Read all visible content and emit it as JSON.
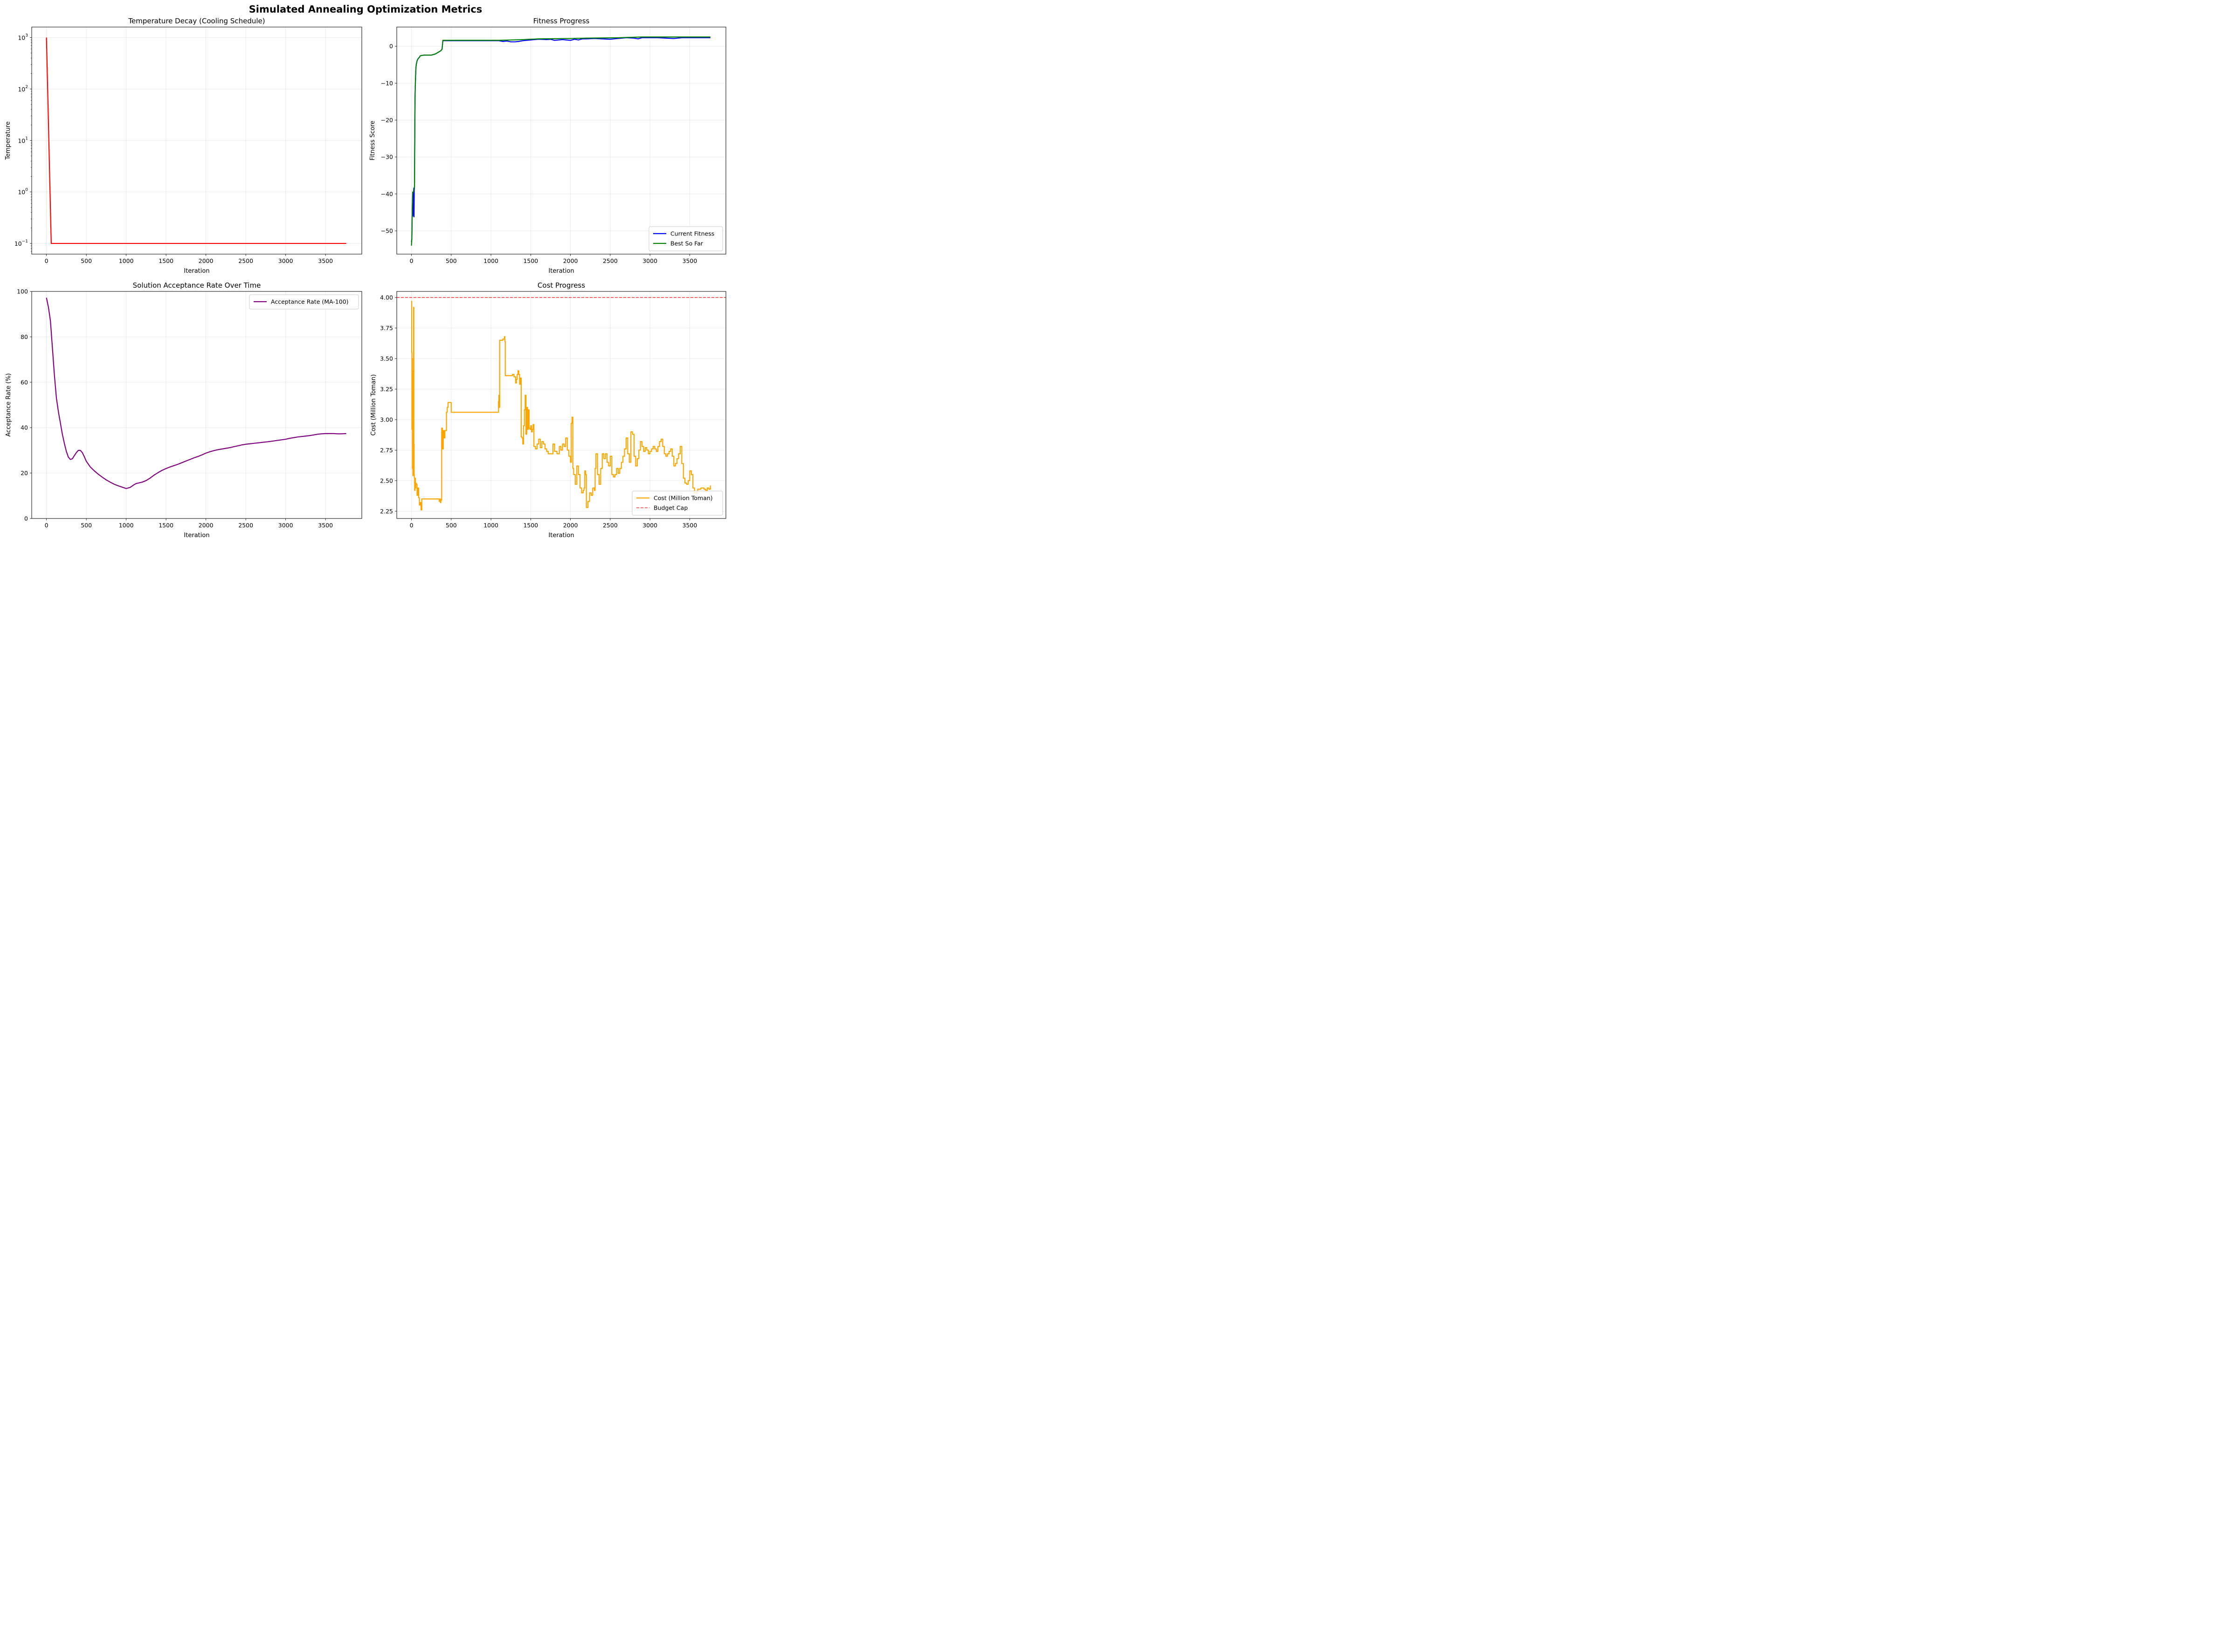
{
  "suptitle": "Simulated Annealing Optimization Metrics",
  "chart_data": [
    {
      "id": "temperature",
      "type": "line",
      "title": "Temperature Decay (Cooling Schedule)",
      "xlabel": "Iteration",
      "ylabel": "Temperature",
      "yscale": "log",
      "xlim": [
        -185,
        3955
      ],
      "ylim": [
        0.062,
        1600
      ],
      "xticks": [
        0,
        500,
        1000,
        1500,
        2000,
        2500,
        3000,
        3500
      ],
      "yticks": [
        0.1,
        1,
        10,
        100,
        1000
      ],
      "yticklabels": [
        {
          "base": "10",
          "exp": "−1"
        },
        {
          "base": "10",
          "exp": "0"
        },
        {
          "base": "10",
          "exp": "1"
        },
        {
          "base": "10",
          "exp": "2"
        },
        {
          "base": "10",
          "exp": "3"
        }
      ],
      "grid": true,
      "legend": null,
      "series": [
        {
          "color": "#ff0000",
          "x": [
            0,
            60,
            3760
          ],
          "y": [
            1000,
            0.1,
            0.1
          ]
        }
      ]
    },
    {
      "id": "fitness",
      "type": "line",
      "title": "Fitness Progress",
      "xlabel": "Iteration",
      "ylabel": "Fitness Score",
      "xlim": [
        -185,
        3955
      ],
      "ylim": [
        -56.3,
        5.2
      ],
      "xticks": [
        0,
        500,
        1000,
        1500,
        2000,
        2500,
        3000,
        3500
      ],
      "yticks": [
        -50,
        -40,
        -30,
        -20,
        -10,
        0
      ],
      "yticklabels": [
        "−50",
        "−40",
        "−30",
        "−20",
        "−10",
        "0"
      ],
      "grid": true,
      "legend": "lower right",
      "series": [
        {
          "name": "Current Fitness",
          "color": "#0000ff",
          "x": [
            0,
            5,
            10,
            15,
            18,
            22,
            25,
            28,
            32,
            35,
            38,
            40,
            43,
            45,
            48,
            52,
            56,
            60,
            65,
            70,
            80,
            90,
            100,
            110,
            130,
            160,
            200,
            250,
            300,
            340,
            370,
            385,
            395,
            400,
            500,
            700,
            900,
            1100,
            1150,
            1200,
            1250,
            1300,
            1350,
            1400,
            1450,
            1500,
            1550,
            1600,
            1700,
            1750,
            1800,
            1900,
            2000,
            2050,
            2100,
            2150,
            2200,
            2300,
            2400,
            2500,
            2550,
            2600,
            2700,
            2800,
            2850,
            2900,
            3000,
            3100,
            3200,
            3300,
            3400,
            3500,
            3600,
            3760
          ],
          "y": [
            -53,
            -52,
            -44,
            -39.5,
            -46,
            -41,
            -45.5,
            -38.5,
            -46.2,
            -39,
            -38.2,
            -30,
            -20,
            -14,
            -11,
            -8,
            -6,
            -5,
            -4.5,
            -4,
            -3.5,
            -3.2,
            -3,
            -2.6,
            -2.5,
            -2.4,
            -2.4,
            -2.4,
            -2.1,
            -1.6,
            -1.2,
            -0.8,
            1.5,
            1.5,
            1.5,
            1.5,
            1.5,
            1.5,
            1.3,
            1.4,
            1.2,
            1.2,
            1.3,
            1.5,
            1.6,
            1.7,
            1.8,
            1.9,
            1.8,
            1.9,
            1.6,
            1.8,
            1.6,
            1.9,
            1.7,
            2.0,
            2.0,
            2.1,
            2.0,
            1.9,
            2.0,
            2.1,
            2.3,
            2.2,
            2.0,
            2.3,
            2.3,
            2.3,
            2.2,
            2.1,
            2.3,
            2.3,
            2.3,
            2.3
          ]
        },
        {
          "name": "Best So Far",
          "color": "#008000",
          "x": [
            0,
            5,
            10,
            15,
            25,
            35,
            38,
            40,
            43,
            45,
            48,
            52,
            56,
            60,
            65,
            70,
            80,
            90,
            100,
            110,
            130,
            160,
            200,
            250,
            300,
            340,
            370,
            385,
            395,
            400,
            1100,
            1400,
            1600,
            2000,
            2200,
            2600,
            2900,
            3200,
            3760
          ],
          "y": [
            -54,
            -52,
            -44,
            -39.5,
            -39.5,
            -38.2,
            -38.2,
            -30,
            -20,
            -14,
            -11,
            -8,
            -6,
            -5,
            -4.5,
            -4,
            -3.5,
            -3.2,
            -3,
            -2.6,
            -2.5,
            -2.4,
            -2.4,
            -2.4,
            -2.1,
            -1.6,
            -1.2,
            -0.8,
            1.6,
            1.6,
            1.6,
            1.8,
            2.0,
            2.1,
            2.2,
            2.3,
            2.5,
            2.5,
            2.5
          ]
        }
      ]
    },
    {
      "id": "acceptance",
      "type": "line",
      "title": "Solution Acceptance Rate Over Time",
      "xlabel": "Iteration",
      "ylabel": "Acceptance Rate (%)",
      "xlim": [
        -185,
        3955
      ],
      "ylim": [
        0,
        100
      ],
      "xticks": [
        0,
        500,
        1000,
        1500,
        2000,
        2500,
        3000,
        3500
      ],
      "yticks": [
        0,
        20,
        40,
        60,
        80,
        100
      ],
      "yticklabels": [
        "0",
        "20",
        "40",
        "60",
        "80",
        "100"
      ],
      "grid": true,
      "legend": "upper right",
      "series": [
        {
          "name": "Acceptance Rate (MA-100)",
          "color": "#800080",
          "x": [
            0,
            25,
            50,
            75,
            100,
            125,
            150,
            175,
            200,
            225,
            250,
            275,
            300,
            325,
            350,
            375,
            400,
            425,
            450,
            475,
            500,
            550,
            600,
            650,
            700,
            750,
            800,
            850,
            900,
            950,
            1000,
            1030,
            1050,
            1075,
            1100,
            1125,
            1150,
            1175,
            1200,
            1250,
            1300,
            1350,
            1400,
            1450,
            1500,
            1550,
            1600,
            1650,
            1700,
            1750,
            1800,
            1850,
            1900,
            1950,
            2000,
            2050,
            2100,
            2150,
            2200,
            2250,
            2300,
            2350,
            2400,
            2450,
            2500,
            2600,
            2700,
            2800,
            2900,
            3000,
            3050,
            3100,
            3150,
            3200,
            3250,
            3300,
            3350,
            3400,
            3450,
            3500,
            3550,
            3600,
            3650,
            3700,
            3760
          ],
          "y": [
            97.2,
            93,
            87,
            75,
            63,
            53,
            47,
            42,
            37,
            33,
            29.5,
            27,
            26,
            26.3,
            27.7,
            29,
            30,
            30,
            29,
            27.2,
            25.2,
            22.7,
            21,
            19.5,
            18.2,
            17,
            16,
            15.1,
            14.4,
            13.8,
            13.2,
            13.5,
            13.7,
            14.3,
            14.9,
            15.4,
            15.6,
            15.8,
            16.0,
            16.7,
            17.8,
            19.1,
            20.2,
            21.2,
            22.0,
            22.7,
            23.3,
            23.9,
            24.6,
            25.3,
            26.0,
            26.7,
            27.3,
            28.0,
            28.8,
            29.4,
            29.9,
            30.3,
            30.6,
            30.9,
            31.2,
            31.6,
            32.0,
            32.4,
            32.7,
            33.1,
            33.5,
            33.9,
            34.4,
            34.9,
            35.3,
            35.6,
            35.9,
            36.1,
            36.3,
            36.5,
            36.8,
            37.1,
            37.3,
            37.4,
            37.4,
            37.4,
            37.3,
            37.3,
            37.4
          ]
        }
      ]
    },
    {
      "id": "cost",
      "type": "line",
      "title": "Cost Progress",
      "xlabel": "Iteration",
      "ylabel": "Cost (Million Toman)",
      "xlim": [
        -185,
        3955
      ],
      "ylim": [
        2.19,
        4.05
      ],
      "xticks": [
        0,
        500,
        1000,
        1500,
        2000,
        2500,
        3000,
        3500
      ],
      "yticks": [
        2.25,
        2.5,
        2.75,
        3.0,
        3.25,
        3.5,
        3.75,
        4.0
      ],
      "yticklabels": [
        "2.25",
        "2.50",
        "2.75",
        "3.00",
        "3.25",
        "3.50",
        "3.75",
        "4.00"
      ],
      "grid": true,
      "legend": "lower right",
      "series": [
        {
          "name": "Cost (Million Toman)",
          "color": "#ffa500",
          "x": [
            0,
            3,
            6,
            9,
            12,
            15,
            18,
            21,
            24,
            27,
            30,
            33,
            36,
            40,
            45,
            50,
            55,
            60,
            70,
            80,
            90,
            100,
            110,
            120,
            130,
            140,
            150,
            160,
            170,
            200,
            250,
            300,
            340,
            350,
            360,
            365,
            370,
            380,
            390,
            400,
            410,
            420,
            440,
            450,
            460,
            500,
            600,
            700,
            800,
            900,
            1000,
            1080,
            1090,
            1095,
            1100,
            1105,
            1110,
            1120,
            1150,
            1170,
            1175,
            1180,
            1200,
            1230,
            1250,
            1270,
            1290,
            1310,
            1320,
            1330,
            1340,
            1350,
            1360,
            1370,
            1380,
            1390,
            1400,
            1410,
            1420,
            1430,
            1440,
            1450,
            1460,
            1470,
            1480,
            1490,
            1500,
            1510,
            1520,
            1530,
            1540,
            1560,
            1580,
            1600,
            1620,
            1640,
            1660,
            1680,
            1700,
            1720,
            1750,
            1780,
            1800,
            1830,
            1860,
            1880,
            1900,
            1920,
            1940,
            1960,
            1980,
            2000,
            2010,
            2020,
            2030,
            2040,
            2060,
            2080,
            2100,
            2120,
            2140,
            2160,
            2170,
            2180,
            2190,
            2200,
            2220,
            2240,
            2260,
            2280,
            2300,
            2310,
            2320,
            2340,
            2360,
            2380,
            2400,
            2420,
            2440,
            2460,
            2480,
            2500,
            2520,
            2540,
            2560,
            2580,
            2600,
            2620,
            2640,
            2660,
            2680,
            2700,
            2720,
            2740,
            2760,
            2780,
            2800,
            2820,
            2840,
            2860,
            2880,
            2900,
            2920,
            2940,
            2960,
            2980,
            3000,
            3020,
            3040,
            3060,
            3080,
            3100,
            3120,
            3140,
            3160,
            3180,
            3200,
            3220,
            3240,
            3260,
            3280,
            3300,
            3320,
            3340,
            3360,
            3380,
            3400,
            3420,
            3440,
            3460,
            3480,
            3500,
            3520,
            3540,
            3560,
            3600,
            3640,
            3680,
            3700,
            3720,
            3740,
            3760
          ],
          "y": [
            3.97,
            3.55,
            2.92,
            3.5,
            2.6,
            3.2,
            2.54,
            3.4,
            2.7,
            3.92,
            2.8,
            2.55,
            2.52,
            2.42,
            2.52,
            2.44,
            2.48,
            2.47,
            2.38,
            2.44,
            2.36,
            2.3,
            2.32,
            2.26,
            2.35,
            2.35,
            2.35,
            2.35,
            2.35,
            2.35,
            2.35,
            2.35,
            2.35,
            2.33,
            2.35,
            2.32,
            2.34,
            2.93,
            2.76,
            2.91,
            2.85,
            2.91,
            3.06,
            3.1,
            3.14,
            3.06,
            3.06,
            3.06,
            3.06,
            3.06,
            3.06,
            3.06,
            3.06,
            3.15,
            3.2,
            3.1,
            3.65,
            3.65,
            3.66,
            3.68,
            3.64,
            3.36,
            3.36,
            3.36,
            3.36,
            3.37,
            3.35,
            3.3,
            3.33,
            3.37,
            3.4,
            3.37,
            3.29,
            3.34,
            2.86,
            2.85,
            2.8,
            2.95,
            3.08,
            3.2,
            2.88,
            3.1,
            2.92,
            3.08,
            2.93,
            2.92,
            2.95,
            2.9,
            2.92,
            2.96,
            2.78,
            2.76,
            2.8,
            2.84,
            2.77,
            2.82,
            2.8,
            2.76,
            2.74,
            2.72,
            2.72,
            2.8,
            2.74,
            2.72,
            2.78,
            2.75,
            2.8,
            2.78,
            2.85,
            2.75,
            2.7,
            2.65,
            2.97,
            3.02,
            2.6,
            2.55,
            2.47,
            2.62,
            2.55,
            2.44,
            2.4,
            2.42,
            2.44,
            2.58,
            2.55,
            2.28,
            2.33,
            2.4,
            2.38,
            2.44,
            2.42,
            2.6,
            2.72,
            2.55,
            2.47,
            2.6,
            2.72,
            2.68,
            2.72,
            2.65,
            2.62,
            2.7,
            2.55,
            2.53,
            2.55,
            2.6,
            2.56,
            2.6,
            2.65,
            2.7,
            2.76,
            2.85,
            2.72,
            2.65,
            2.9,
            2.88,
            2.7,
            2.62,
            2.68,
            2.75,
            2.82,
            2.78,
            2.74,
            2.77,
            2.75,
            2.72,
            2.74,
            2.76,
            2.78,
            2.76,
            2.74,
            2.78,
            2.82,
            2.84,
            2.78,
            2.72,
            2.7,
            2.72,
            2.74,
            2.76,
            2.7,
            2.62,
            2.64,
            2.68,
            2.72,
            2.78,
            2.64,
            2.52,
            2.48,
            2.47,
            2.5,
            2.58,
            2.55,
            2.44,
            2.4,
            2.43,
            2.44,
            2.43,
            2.42,
            2.44,
            2.43,
            2.46
          ]
        },
        {
          "name": "Budget Cap",
          "color": "#ff0000",
          "dashed": true,
          "alpha": 0.75,
          "hline": 4.0
        }
      ]
    }
  ]
}
